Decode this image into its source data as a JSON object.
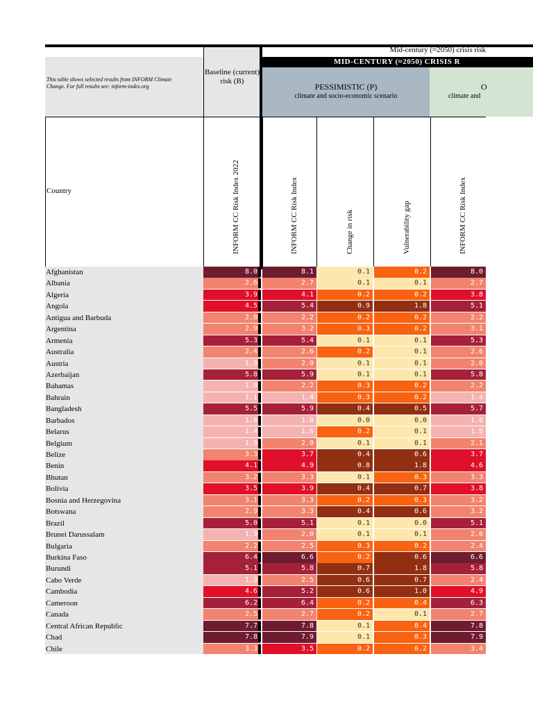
{
  "header": {
    "note": "This table shows selected results from INFORM Climate Change. For full results see: inform-index.org",
    "baseline_label": "Baseline (current) risk (B)",
    "mid_century_label": "Mid-century (≈2050) crisis risk",
    "crisis_bar": "MID-CENTURY (≈2050) CRISIS R",
    "pessimistic_title": "PESSIMISTIC (P)",
    "pessimistic_sub": "climate and socio-economic scenario",
    "optimistic_title": "O",
    "optimistic_sub": "climate and",
    "country_col": "Country",
    "col_baseline": "INFORM CC Risk Index 2022",
    "col_p_index": "INFORM CC Risk Index",
    "col_p_change": "Change in risk",
    "col_p_vuln": "Vulnerability gap",
    "col_o_index": "INFORM CC Risk Index"
  },
  "colors": {
    "darkest": "#6f1c30",
    "dark": "#a5213a",
    "red": "#e0102b",
    "salmon": "#f2836e",
    "pink": "#f4b3b0",
    "pale": "#fde7ad",
    "orange": "#f86210",
    "brown": "#922f12"
  },
  "rows": [
    {
      "country": "Afghanistan",
      "b": "8.0",
      "p": "8.1",
      "c": "0.1",
      "v": "0.2",
      "o": "8.0"
    },
    {
      "country": "Albania",
      "b": "2.6",
      "p": "2.7",
      "c": "0.1",
      "v": "0.1",
      "o": "2.7"
    },
    {
      "country": "Algeria",
      "b": "3.9",
      "p": "4.1",
      "c": "0.2",
      "v": "0.2",
      "o": "3.8"
    },
    {
      "country": "Angola",
      "b": "4.5",
      "p": "5.4",
      "c": "0.9",
      "v": "1.8",
      "o": "5.1"
    },
    {
      "country": "Antigua and Barbuda",
      "b": "2.0",
      "p": "2.2",
      "c": "0.2",
      "v": "0.2",
      "o": "2.2"
    },
    {
      "country": "Argentina",
      "b": "2.9",
      "p": "3.2",
      "c": "0.3",
      "v": "0.2",
      "o": "3.1"
    },
    {
      "country": "Armenia",
      "b": "5.3",
      "p": "5.4",
      "c": "0.1",
      "v": "0.1",
      "o": "5.3"
    },
    {
      "country": "Australia",
      "b": "2.4",
      "p": "2.6",
      "c": "0.2",
      "v": "0.1",
      "o": "2.6"
    },
    {
      "country": "Austria",
      "b": "1.9",
      "p": "2.0",
      "c": "0.1",
      "v": "0.1",
      "o": "2.0"
    },
    {
      "country": "Azerbaijan",
      "b": "5.8",
      "p": "5.9",
      "c": "0.1",
      "v": "0.1",
      "o": "5.8"
    },
    {
      "country": "Bahamas",
      "b": "1.9",
      "p": "2.2",
      "c": "0.3",
      "v": "0.2",
      "o": "2.2"
    },
    {
      "country": "Bahrain",
      "b": "1.1",
      "p": "1.4",
      "c": "0.3",
      "v": "0.2",
      "o": "1.4"
    },
    {
      "country": "Bangladesh",
      "b": "5.5",
      "p": "5.9",
      "c": "0.4",
      "v": "0.5",
      "o": "5.7"
    },
    {
      "country": "Barbados",
      "b": "1.8",
      "p": "1.8",
      "c": "0.0",
      "v": "0.0",
      "o": "1.8"
    },
    {
      "country": "Belarus",
      "b": "1.4",
      "p": "1.6",
      "c": "0.2",
      "v": "0.1",
      "o": "1.5"
    },
    {
      "country": "Belgium",
      "b": "1.9",
      "p": "2.0",
      "c": "0.1",
      "v": "0.1",
      "o": "2.1"
    },
    {
      "country": "Belize",
      "b": "3.3",
      "p": "3.7",
      "c": "0.4",
      "v": "0.6",
      "o": "3.7"
    },
    {
      "country": "Benin",
      "b": "4.1",
      "p": "4.9",
      "c": "0.8",
      "v": "1.8",
      "o": "4.6"
    },
    {
      "country": "Bhutan",
      "b": "3.2",
      "p": "3.3",
      "c": "0.1",
      "v": "0.3",
      "o": "3.3"
    },
    {
      "country": "Bolivia",
      "b": "3.5",
      "p": "3.9",
      "c": "0.4",
      "v": "0.7",
      "o": "3.8"
    },
    {
      "country": "Bosnia and Herzegovina",
      "b": "3.1",
      "p": "3.3",
      "c": "0.2",
      "v": "0.3",
      "o": "3.2"
    },
    {
      "country": "Botswana",
      "b": "2.9",
      "p": "3.3",
      "c": "0.4",
      "v": "0.6",
      "o": "3.2"
    },
    {
      "country": "Brazil",
      "b": "5.0",
      "p": "5.1",
      "c": "0.1",
      "v": "0.0",
      "o": "5.1"
    },
    {
      "country": "Brunei Darussalam",
      "b": "1.9",
      "p": "2.0",
      "c": "0.1",
      "v": "0.1",
      "o": "2.0"
    },
    {
      "country": "Bulgaria",
      "b": "2.2",
      "p": "2.5",
      "c": "0.3",
      "v": "0.2",
      "o": "2.4"
    },
    {
      "country": "Burkina Faso",
      "b": "6.4",
      "p": "6.6",
      "c": "0.2",
      "v": "0.6",
      "o": "6.6"
    },
    {
      "country": "Burundi",
      "b": "5.1",
      "p": "5.8",
      "c": "0.7",
      "v": "1.8",
      "o": "5.8"
    },
    {
      "country": "Cabo Verde",
      "b": "1.9",
      "p": "2.5",
      "c": "0.6",
      "v": "0.7",
      "o": "2.4"
    },
    {
      "country": "Cambodia",
      "b": "4.6",
      "p": "5.2",
      "c": "0.6",
      "v": "1.0",
      "o": "4.9"
    },
    {
      "country": "Cameroon",
      "b": "6.2",
      "p": "6.4",
      "c": "0.2",
      "v": "0.4",
      "o": "6.3"
    },
    {
      "country": "Canada",
      "b": "2.5",
      "p": "2.7",
      "c": "0.2",
      "v": "0.1",
      "o": "2.7"
    },
    {
      "country": "Central African Republic",
      "b": "7.7",
      "p": "7.8",
      "c": "0.1",
      "v": "0.4",
      "o": "7.8"
    },
    {
      "country": "Chad",
      "b": "7.8",
      "p": "7.9",
      "c": "0.1",
      "v": "0.3",
      "o": "7.9"
    },
    {
      "country": "Chile",
      "b": "3.3",
      "p": "3.5",
      "c": "0.2",
      "v": "0.2",
      "o": "3.4"
    }
  ]
}
